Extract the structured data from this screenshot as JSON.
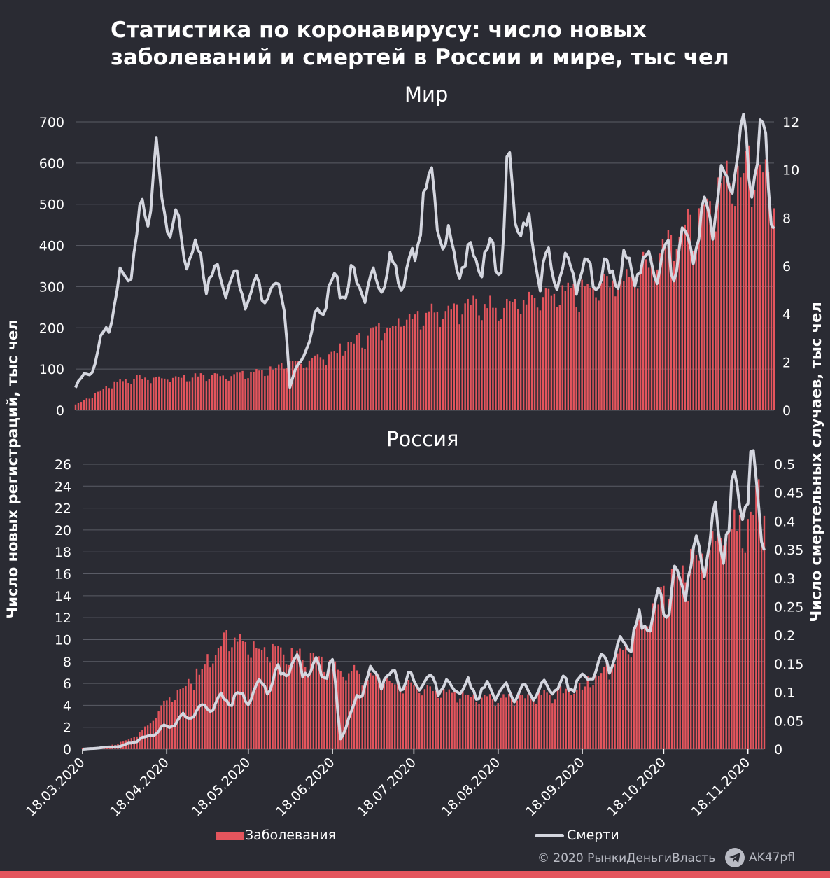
{
  "title": "Статистика по коронавирусу: число новых заболеваний и смертей в России и мире, тыс чел",
  "ylabel_left": "Число новых регистраций, тыс чел",
  "ylabel_right": "Число смертельных случаев, тыс чел",
  "legend": {
    "cases": "Заболевания",
    "deaths": "Смерти"
  },
  "footer": {
    "copyright": "© 2020  РынкиДеньгиВласть",
    "telegram": "AK47pfl"
  },
  "colors": {
    "background": "#2a2b33",
    "bars": "#e4555d",
    "line": "#d4d6df",
    "grid": "#5a5c66",
    "text": "#ffffff"
  },
  "icons": {
    "telegram": "telegram-icon"
  },
  "chart_data": [
    {
      "type": "bar+line",
      "title": "Мир",
      "x_start": "2020-03-18",
      "x_end": "2020-11-24",
      "x_ticks": [
        "18.03.2020",
        "18.04.2020",
        "18.05.2020",
        "18.06.2020",
        "18.07.2020",
        "18.08.2020",
        "18.09.2020",
        "18.10.2020",
        "18.11.2020"
      ],
      "y_left": {
        "lim": [
          0,
          700
        ],
        "ticks": [
          "0",
          "100",
          "200",
          "300",
          "400",
          "500",
          "600",
          "700"
        ]
      },
      "y_right": {
        "lim": [
          0,
          12
        ],
        "ticks": [
          "0",
          "2",
          "4",
          "6",
          "8",
          "10",
          "12"
        ]
      },
      "series": [
        {
          "name": "Заболевания",
          "axis": "left",
          "kind": "bar",
          "anchors": [
            [
              "2020-03-18",
              14
            ],
            [
              "2020-03-25",
              40
            ],
            [
              "2020-04-01",
              70
            ],
            [
              "2020-04-08",
              80
            ],
            [
              "2020-04-18",
              80
            ],
            [
              "2020-05-01",
              85
            ],
            [
              "2020-05-18",
              90
            ],
            [
              "2020-06-01",
              110
            ],
            [
              "2020-06-18",
              140
            ],
            [
              "2020-07-01",
              190
            ],
            [
              "2020-07-18",
              240
            ],
            [
              "2020-08-01",
              260
            ],
            [
              "2020-08-18",
              265
            ],
            [
              "2020-09-01",
              275
            ],
            [
              "2020-09-18",
              300
            ],
            [
              "2020-10-01",
              330
            ],
            [
              "2020-10-10",
              370
            ],
            [
              "2020-10-18",
              420
            ],
            [
              "2020-11-01",
              520
            ],
            [
              "2020-11-10",
              600
            ],
            [
              "2020-11-18",
              620
            ],
            [
              "2020-11-24",
              560
            ]
          ]
        },
        {
          "name": "Смерти",
          "axis": "right",
          "kind": "line",
          "anchors": [
            [
              "2020-03-18",
              0.9
            ],
            [
              "2020-03-25",
              2.0
            ],
            [
              "2020-04-01",
              4.5
            ],
            [
              "2020-04-08",
              6.5
            ],
            [
              "2020-04-16",
              10.3
            ],
            [
              "2020-04-18",
              8.5
            ],
            [
              "2020-05-01",
              6.0
            ],
            [
              "2020-05-18",
              5.0
            ],
            [
              "2020-06-01",
              5.0
            ],
            [
              "2020-06-03",
              1.0
            ],
            [
              "2020-06-18",
              5.2
            ],
            [
              "2020-07-01",
              5.3
            ],
            [
              "2020-07-18",
              6.2
            ],
            [
              "2020-07-21",
              9.6
            ],
            [
              "2020-08-01",
              6.2
            ],
            [
              "2020-08-18",
              6.5
            ],
            [
              "2020-08-20",
              9.7
            ],
            [
              "2020-09-01",
              5.8
            ],
            [
              "2020-09-18",
              5.7
            ],
            [
              "2020-10-01",
              5.8
            ],
            [
              "2020-10-18",
              6.4
            ],
            [
              "2020-11-01",
              8.0
            ],
            [
              "2020-11-10",
              10.5
            ],
            [
              "2020-11-18",
              10.5
            ],
            [
              "2020-11-21",
              11.1
            ],
            [
              "2020-11-24",
              7.9
            ]
          ]
        }
      ]
    },
    {
      "type": "bar+line",
      "title": "Россия",
      "x_start": "2020-03-18",
      "x_end": "2020-11-24",
      "x_ticks": [
        "18.03.2020",
        "18.04.2020",
        "18.05.2020",
        "18.06.2020",
        "18.07.2020",
        "18.08.2020",
        "18.09.2020",
        "18.10.2020",
        "18.11.2020"
      ],
      "y_left": {
        "lim": [
          0,
          26
        ],
        "ticks": [
          "0",
          "2",
          "4",
          "6",
          "8",
          "10",
          "12",
          "14",
          "16",
          "18",
          "20",
          "22",
          "24",
          "26"
        ]
      },
      "y_right": {
        "lim": [
          0,
          0.5
        ],
        "ticks": [
          "0",
          "0.05",
          "0.1",
          "0.15",
          "0.2",
          "0.25",
          "0.3",
          "0.35",
          "0.4",
          "0.45",
          "0.5"
        ]
      },
      "series": [
        {
          "name": "Заболевания",
          "axis": "left",
          "kind": "bar",
          "anchors": [
            [
              "2020-03-18",
              0.1
            ],
            [
              "2020-03-28",
              0.3
            ],
            [
              "2020-04-05",
              1.0
            ],
            [
              "2020-04-12",
              2.5
            ],
            [
              "2020-04-18",
              4.5
            ],
            [
              "2020-04-25",
              6.0
            ],
            [
              "2020-05-01",
              7.5
            ],
            [
              "2020-05-11",
              11.0
            ],
            [
              "2020-05-18",
              9.5
            ],
            [
              "2020-06-01",
              9.0
            ],
            [
              "2020-06-18",
              7.8
            ],
            [
              "2020-07-01",
              6.8
            ],
            [
              "2020-07-18",
              6.0
            ],
            [
              "2020-08-01",
              5.3
            ],
            [
              "2020-08-18",
              4.8
            ],
            [
              "2020-09-01",
              4.9
            ],
            [
              "2020-09-18",
              5.8
            ],
            [
              "2020-10-01",
              8.5
            ],
            [
              "2020-10-10",
              11.5
            ],
            [
              "2020-10-18",
              15.0
            ],
            [
              "2020-11-01",
              18.0
            ],
            [
              "2020-11-10",
              20.5
            ],
            [
              "2020-11-18",
              22.0
            ],
            [
              "2020-11-24",
              24.5
            ]
          ]
        },
        {
          "name": "Смерти",
          "axis": "right",
          "kind": "line",
          "anchors": [
            [
              "2020-03-18",
              0.0
            ],
            [
              "2020-04-01",
              0.005
            ],
            [
              "2020-04-10",
              0.02
            ],
            [
              "2020-04-18",
              0.04
            ],
            [
              "2020-05-01",
              0.07
            ],
            [
              "2020-05-11",
              0.09
            ],
            [
              "2020-05-18",
              0.09
            ],
            [
              "2020-06-01",
              0.14
            ],
            [
              "2020-06-18",
              0.145
            ],
            [
              "2020-06-21",
              0.02
            ],
            [
              "2020-07-01",
              0.13
            ],
            [
              "2020-07-18",
              0.12
            ],
            [
              "2020-08-01",
              0.11
            ],
            [
              "2020-08-18",
              0.1
            ],
            [
              "2020-09-01",
              0.1
            ],
            [
              "2020-09-18",
              0.12
            ],
            [
              "2020-10-01",
              0.17
            ],
            [
              "2020-10-18",
              0.25
            ],
            [
              "2020-11-01",
              0.35
            ],
            [
              "2020-11-10",
              0.4
            ],
            [
              "2020-11-18",
              0.45
            ],
            [
              "2020-11-21",
              0.46
            ],
            [
              "2020-11-24",
              0.37
            ]
          ]
        }
      ]
    }
  ]
}
